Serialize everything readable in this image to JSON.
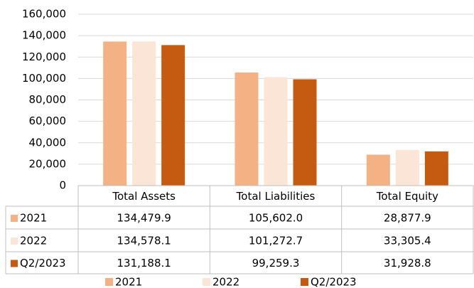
{
  "chart_data": {
    "type": "bar",
    "categories": [
      "Total Assets",
      "Total Liabilities",
      "Total Equity"
    ],
    "series": [
      {
        "name": "2021",
        "color": "#f4b183",
        "values": [
          134479.9,
          105602.0,
          28877.9
        ],
        "value_labels": [
          "134,479.9",
          "105,602.0",
          "28,877.9"
        ]
      },
      {
        "name": "2022",
        "color": "#fbe5d6",
        "values": [
          134578.1,
          101272.7,
          33305.4
        ],
        "value_labels": [
          "134,578.1",
          "101,272.7",
          "33,305.4"
        ]
      },
      {
        "name": "Q2/2023",
        "color": "#c55a11",
        "values": [
          131188.1,
          99259.3,
          31928.8
        ],
        "value_labels": [
          "131,188.1",
          "99,259.3",
          "31,928.8"
        ]
      }
    ],
    "ylim": [
      0,
      160000
    ],
    "yticks": [
      0,
      {
        "value": 20000,
        "label": "20,000"
      },
      {
        "value": 40000,
        "label": "40,000"
      },
      {
        "value": 60000,
        "label": "60,000"
      },
      {
        "value": 80000,
        "label": "80,000"
      },
      {
        "value": 100000,
        "label": "100,000"
      },
      {
        "value": 120000,
        "label": "120,000"
      },
      {
        "value": 140000,
        "label": "140,000"
      },
      {
        "value": 160000,
        "label": "160,000"
      }
    ],
    "grid": true,
    "legend": "bottom"
  }
}
